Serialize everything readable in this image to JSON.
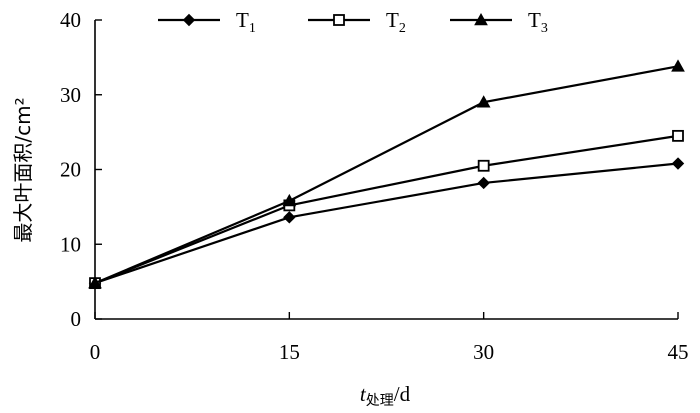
{
  "chart_data": {
    "type": "line",
    "x": [
      0,
      15,
      30,
      45
    ],
    "xticks": [
      "0",
      "15",
      "30",
      "45"
    ],
    "xlim": [
      0,
      45
    ],
    "ylim": [
      0,
      40
    ],
    "yticks": [
      "0",
      "10",
      "20",
      "30",
      "40"
    ],
    "ylabel": "最大叶面积/cm²",
    "xlabel": {
      "var": "t",
      "sub": "处理",
      "unit": "/d"
    },
    "legend_position": "top",
    "grid": false,
    "series": [
      {
        "name": "T",
        "sub": "1",
        "marker": "diamond-filled",
        "values": [
          4.8,
          13.6,
          18.2,
          20.8
        ]
      },
      {
        "name": "T",
        "sub": "2",
        "marker": "square-open",
        "values": [
          4.8,
          15.2,
          20.5,
          24.5
        ]
      },
      {
        "name": "T",
        "sub": "3",
        "marker": "triangle-filled",
        "values": [
          4.8,
          15.8,
          29.0,
          33.8
        ]
      }
    ]
  }
}
